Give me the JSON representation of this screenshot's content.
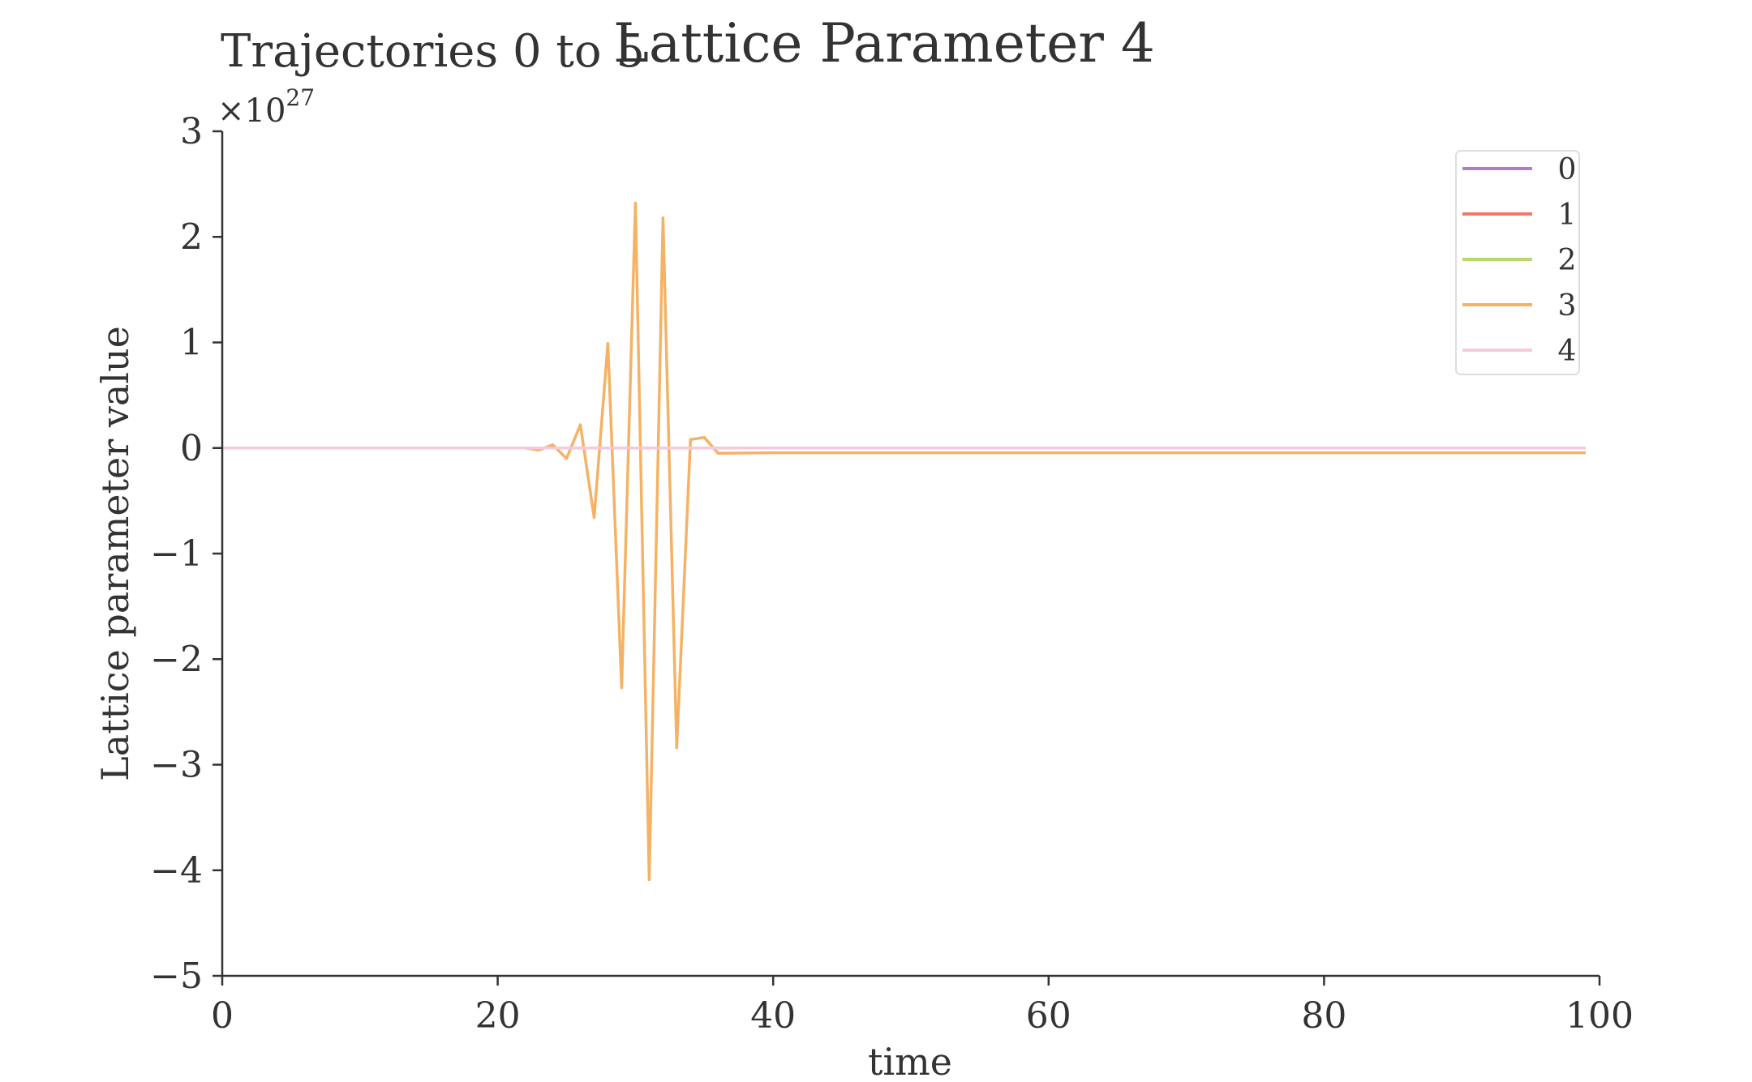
{
  "chart_data": {
    "type": "line",
    "title": "Lattice Parameter 4",
    "subtitle": "Trajectories 0 to 5",
    "xlabel": "time",
    "ylabel": "Lattice parameter value",
    "y_offset_label_base": "×10",
    "y_offset_label_exp": "27",
    "y_scale_multiplier": 1e+27,
    "xlim": [
      0,
      100
    ],
    "ylim": [
      -5,
      3
    ],
    "x_ticks": [
      0,
      20,
      40,
      60,
      80,
      100
    ],
    "y_ticks": [
      3,
      2,
      1,
      0,
      -1,
      -2,
      -3,
      -4,
      -5
    ],
    "x_tick_labels": [
      "0",
      "20",
      "40",
      "60",
      "80",
      "100"
    ],
    "y_tick_labels": [
      "3",
      "2",
      "1",
      "0",
      "−1",
      "−2",
      "−3",
      "−4",
      "−5"
    ],
    "grid": false,
    "legend_position": "top-right",
    "series": [
      {
        "name": "0",
        "color": "#b07cc6",
        "x": [
          0,
          99
        ],
        "y": [
          0,
          0
        ]
      },
      {
        "name": "1",
        "color": "#f07a6a",
        "x": [
          0,
          99
        ],
        "y": [
          0,
          0
        ]
      },
      {
        "name": "2",
        "color": "#b7d96b",
        "x": [
          0,
          99
        ],
        "y": [
          0,
          0
        ]
      },
      {
        "name": "3",
        "color": "#f5b265",
        "x": [
          0,
          1,
          2,
          3,
          4,
          5,
          6,
          7,
          8,
          9,
          10,
          11,
          12,
          13,
          14,
          15,
          16,
          17,
          18,
          19,
          20,
          21,
          22,
          23,
          24,
          25,
          26,
          27,
          28,
          29,
          30,
          31,
          32,
          33,
          34,
          35,
          36,
          40,
          50,
          60,
          70,
          80,
          90,
          99
        ],
        "y": [
          0,
          0,
          0,
          0,
          0,
          0,
          0,
          0,
          0,
          0,
          0,
          0,
          0,
          0,
          0,
          0,
          0,
          0,
          0,
          0,
          0,
          0,
          0,
          -0.02,
          0.03,
          -0.1,
          0.22,
          -0.66,
          0.99,
          -2.27,
          2.32,
          -4.09,
          2.18,
          -2.84,
          0.08,
          0.1,
          -0.05,
          -0.045,
          -0.045,
          -0.045,
          -0.045,
          -0.045,
          -0.045,
          -0.045
        ]
      },
      {
        "name": "4",
        "color": "#f7c9dd",
        "x": [
          0,
          99
        ],
        "y": [
          0,
          0
        ]
      }
    ]
  }
}
